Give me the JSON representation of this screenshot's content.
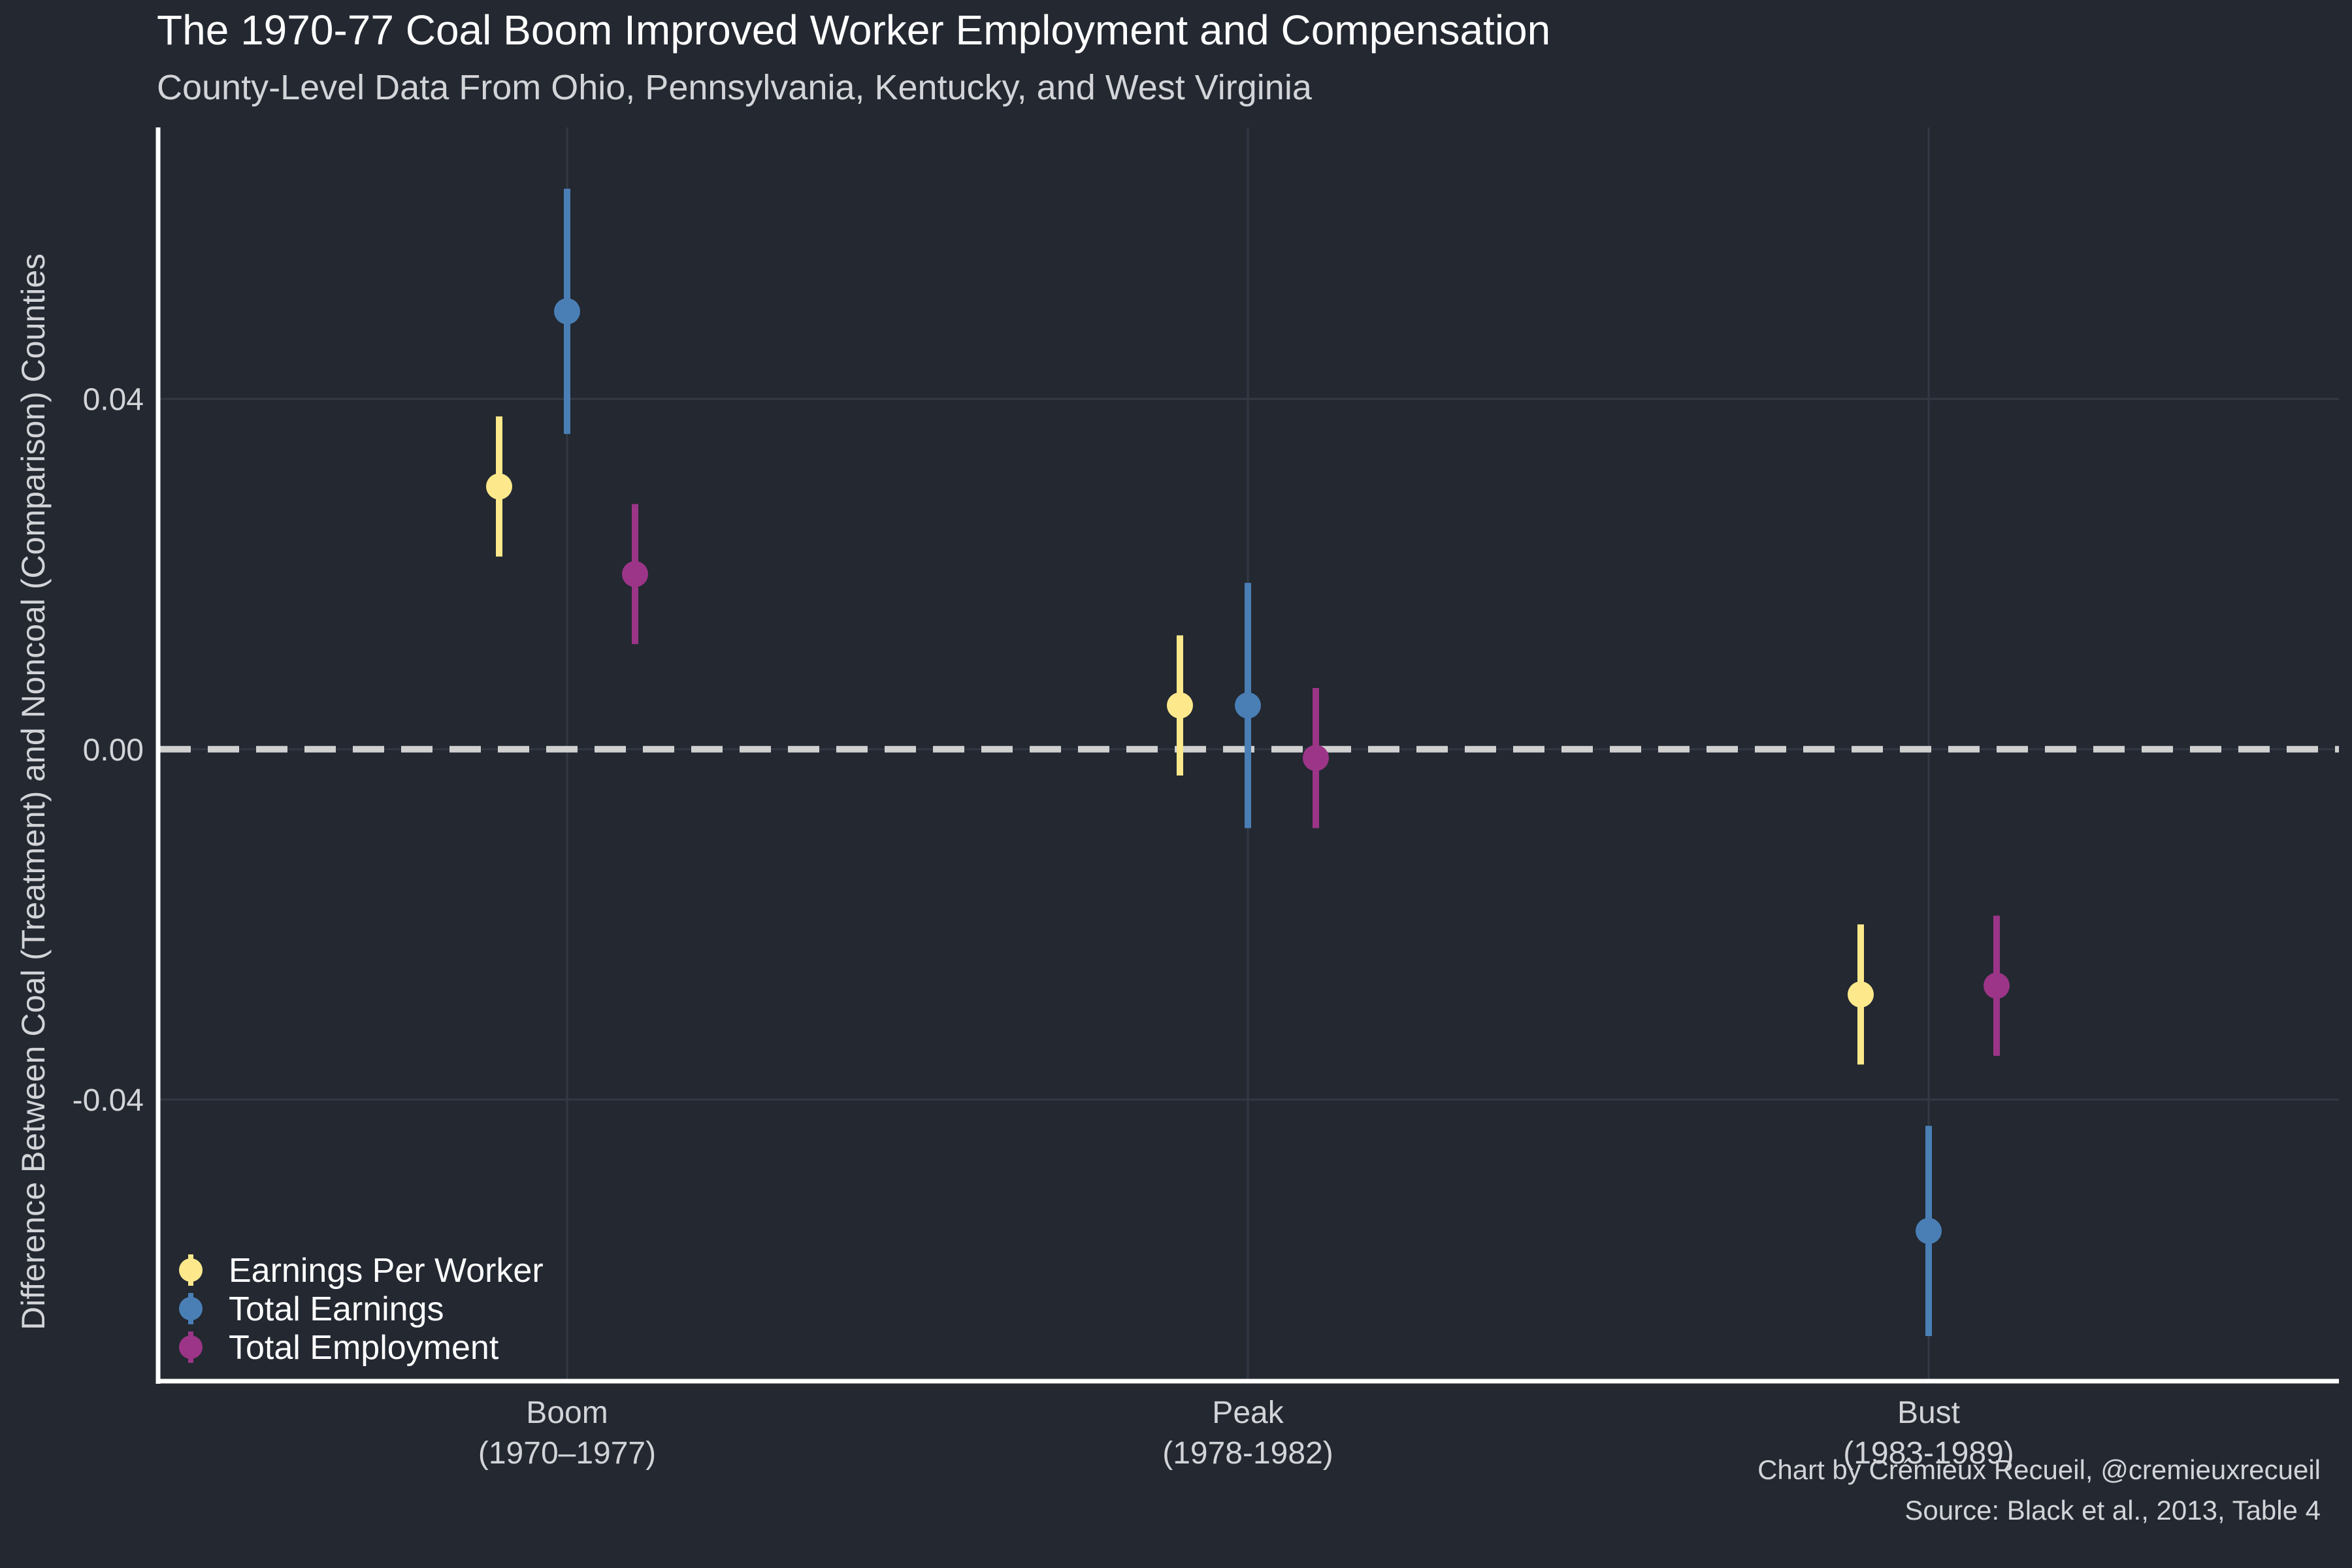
{
  "chart_data": {
    "type": "scatter",
    "title": "The 1970-77 Coal Boom Improved Worker Employment and Compensation",
    "subtitle": "County-Level Data From Ohio, Pennsylvania, Kentucky, and West Virginia",
    "ylabel": "Difference Between Coal (Treatment) and Noncoal (Comparison) Counties",
    "xlabel": "",
    "categories": [
      {
        "line1": "Boom",
        "line2": "(1970–1977)"
      },
      {
        "line1": "Peak",
        "line2": "(1978-1982)"
      },
      {
        "line1": "Bust",
        "line2": "(1983-1989)"
      }
    ],
    "ylim": [
      -0.072,
      0.071
    ],
    "y_ticks": [
      {
        "value": 0.04,
        "label": "0.04"
      },
      {
        "value": 0.0,
        "label": "0.00"
      },
      {
        "value": -0.04,
        "label": "-0.04"
      }
    ],
    "reference_line": {
      "value": 0.0,
      "style": "dashed",
      "color": "#d0d0d0"
    },
    "grid": true,
    "legend_position": "bottom-left",
    "series": [
      {
        "name": "Earnings Per Worker",
        "color": "#fde98c",
        "values": [
          0.03,
          0.005,
          -0.028
        ],
        "lower": [
          0.022,
          -0.003,
          -0.036
        ],
        "upper": [
          0.038,
          0.013,
          -0.02
        ]
      },
      {
        "name": "Total Earnings",
        "color": "#4a7fb6",
        "values": [
          0.05,
          0.005,
          -0.055
        ],
        "lower": [
          0.036,
          -0.009,
          -0.067
        ],
        "upper": [
          0.064,
          0.019,
          -0.043
        ]
      },
      {
        "name": "Total Employment",
        "color": "#9c3587",
        "values": [
          0.02,
          -0.001,
          -0.027
        ],
        "lower": [
          0.012,
          -0.009,
          -0.035
        ],
        "upper": [
          0.028,
          0.007,
          -0.019
        ]
      }
    ],
    "caption": {
      "line1": "Chart by Crémieux Recueil, @cremieuxrecueil",
      "line2": "Source: Black et al., 2013, Table 4"
    }
  }
}
